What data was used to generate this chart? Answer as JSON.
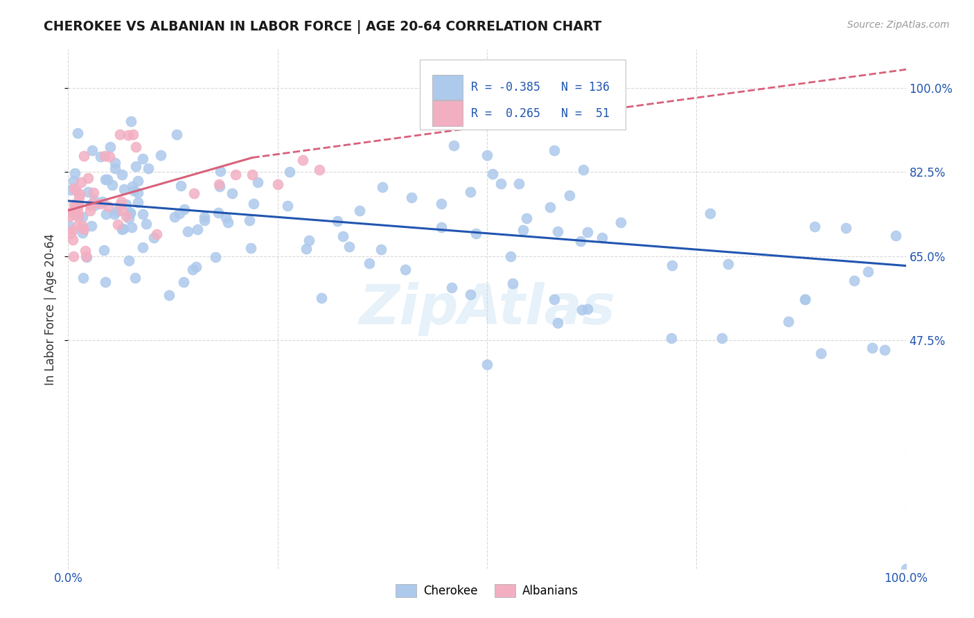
{
  "title": "CHEROKEE VS ALBANIAN IN LABOR FORCE | AGE 20-64 CORRELATION CHART",
  "source": "Source: ZipAtlas.com",
  "ylabel": "In Labor Force | Age 20-64",
  "legend_cherokee_R": "-0.385",
  "legend_cherokee_N": "136",
  "legend_albanian_R": "0.265",
  "legend_albanian_N": "51",
  "cherokee_color": "#adc9eb",
  "albanian_color": "#f2afc2",
  "cherokee_line_color": "#2155b0",
  "albanian_line_color": "#d9607a",
  "watermark": "ZipAtlas",
  "bg_color": "#ffffff",
  "grid_color": "#d8d8d8",
  "xlim": [
    0.0,
    1.0
  ],
  "ylim": [
    0.0,
    1.08
  ],
  "xticks": [
    0.0,
    0.25,
    0.5,
    0.75,
    1.0
  ],
  "xtick_labels": [
    "0.0%",
    "",
    "",
    "",
    "100.0%"
  ],
  "yticks": [
    0.475,
    0.65,
    0.825,
    1.0
  ],
  "ytick_labels": [
    "47.5%",
    "65.0%",
    "82.5%",
    "100.0%"
  ],
  "cherokee_trend": [
    0.0,
    1.0,
    0.765,
    0.63
  ],
  "albanian_trend_solid": [
    0.0,
    0.22,
    0.745,
    0.855
  ],
  "albanian_trend_dashed": [
    0.22,
    1.05,
    0.855,
    1.05
  ]
}
